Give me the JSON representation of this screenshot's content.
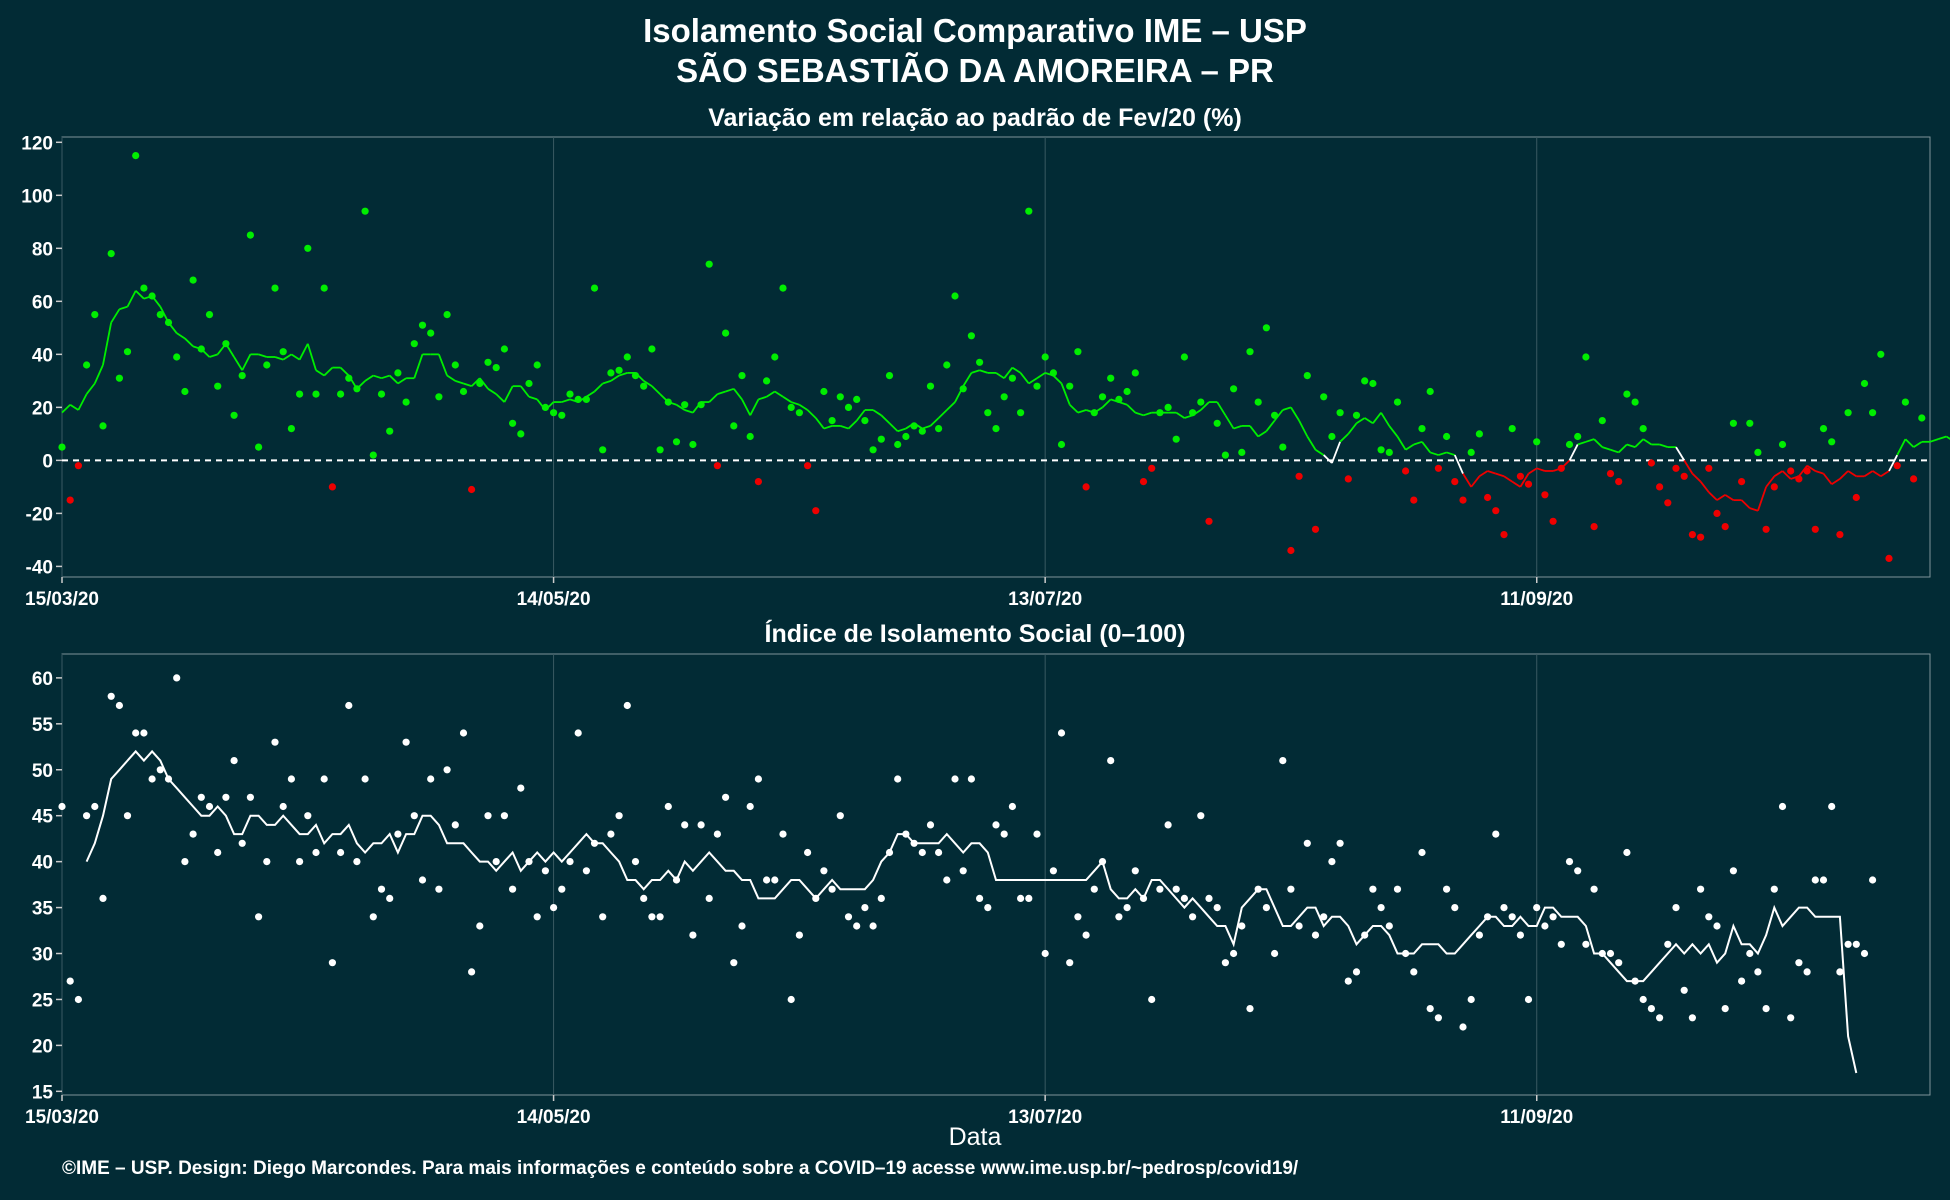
{
  "title": "Isolamento Social Comparativo IME – USP",
  "subtitle": "SÃO SEBASTIÃO DA AMOREIRA – PR",
  "footer": "©IME – USP. Design: Diego Marcondes. Para mais informações e conteúdo sobre a COVID–19 acesse www.ime.usp.br/~pedrosp/covid19/",
  "colors": {
    "background": "#022b35",
    "positive": "#00ee00",
    "negative": "#ee0000",
    "index": "#ffffff",
    "grid": "#3a5a62"
  },
  "chart_data": [
    {
      "type": "scatter",
      "title": "Variação em relação ao padrão de Fev/20 (%)",
      "xlabel": "",
      "ylabel": "",
      "x_start": "15/03/20",
      "x_end": "29/10/20",
      "x_ticks": [
        "15/03/20",
        "14/05/20",
        "13/07/20",
        "11/09/20"
      ],
      "y_ticks": [
        -40,
        -20,
        0,
        20,
        40,
        60,
        80,
        100,
        120
      ],
      "ylim": [
        -44,
        122
      ],
      "reference_line": 0,
      "grid": true,
      "series": [
        {
          "kind": "points",
          "values": [
            5,
            -15,
            -2,
            36,
            55,
            13,
            78,
            31,
            41,
            115,
            65,
            62,
            55,
            52,
            39,
            26,
            68,
            42,
            55,
            28,
            44,
            17,
            32,
            85,
            5,
            36,
            65,
            41,
            12,
            25,
            80,
            25,
            65,
            -10,
            25,
            31,
            27,
            94,
            2,
            25,
            11,
            33,
            22,
            44,
            51,
            48,
            24,
            55,
            36,
            26,
            -11,
            29,
            37,
            35,
            42,
            14,
            10,
            29,
            36,
            20,
            18,
            17,
            25,
            23,
            23,
            65,
            4,
            33,
            34,
            39,
            32,
            28,
            42,
            4,
            22,
            7,
            21,
            6,
            21,
            74,
            -2,
            48,
            13,
            32,
            9,
            -8,
            30,
            39,
            65,
            20,
            18,
            -2,
            -19,
            26,
            15,
            24,
            20,
            23,
            15,
            4,
            8,
            32,
            6,
            9,
            13,
            11,
            28,
            12,
            36,
            62,
            27,
            47,
            37,
            18,
            12,
            24,
            31,
            18,
            94,
            28,
            39,
            33,
            6,
            28,
            41,
            -10,
            18,
            24,
            31,
            23,
            26,
            33,
            -8,
            -3,
            18,
            20,
            8,
            39,
            18,
            22,
            -23,
            14,
            2,
            27,
            3,
            41,
            22,
            50,
            17,
            5,
            -34,
            -6,
            32,
            -26,
            24,
            9,
            18,
            -7,
            17,
            30,
            29,
            4,
            3,
            22,
            -4,
            -15,
            12,
            26,
            -3,
            9,
            -8,
            -15,
            3,
            10,
            -14,
            -19,
            -28,
            12,
            -6,
            -9,
            7,
            -13,
            -23,
            -3,
            6,
            9,
            39,
            -25,
            15,
            -5,
            -8,
            25,
            22,
            12,
            -1,
            -10,
            -16,
            -3,
            -6,
            -28,
            -29,
            -3,
            -20,
            -25,
            14,
            -8,
            14,
            3,
            -26,
            -10,
            6,
            -4,
            -7,
            -4,
            -26,
            12,
            7,
            -28,
            18,
            -14,
            29,
            18,
            40,
            -37,
            -2,
            22,
            -7,
            16
          ]
        },
        {
          "kind": "moving_average",
          "values": [
            18,
            21,
            19,
            25,
            29,
            36,
            52,
            57,
            58,
            64,
            61,
            62,
            58,
            52,
            48,
            46,
            43,
            42,
            39,
            40,
            44,
            39,
            34,
            40,
            40,
            39,
            39,
            38,
            40,
            38,
            44,
            34,
            32,
            35,
            35,
            32,
            27,
            30,
            32,
            31,
            32,
            29,
            31,
            31,
            40,
            40,
            40,
            32,
            30,
            29,
            28,
            31,
            27,
            25,
            22,
            28,
            28,
            24,
            23,
            19,
            22,
            22,
            23,
            22,
            24,
            26,
            29,
            30,
            32,
            33,
            33,
            30,
            28,
            25,
            22,
            21,
            19,
            18,
            22,
            22,
            25,
            26,
            27,
            23,
            17,
            23,
            24,
            26,
            24,
            22,
            21,
            19,
            16,
            12,
            13,
            13,
            12,
            15,
            19,
            19,
            17,
            14,
            11,
            12,
            14,
            12,
            13,
            16,
            19,
            22,
            28,
            33,
            34,
            33,
            33,
            31,
            35,
            33,
            29,
            31,
            33,
            32,
            29,
            21,
            18,
            19,
            18,
            20,
            23,
            22,
            21,
            18,
            17,
            18,
            18,
            18,
            18,
            16,
            17,
            19,
            22,
            22,
            17,
            12,
            13,
            13,
            9,
            11,
            15,
            19,
            20,
            15,
            9,
            4,
            2,
            -1,
            7,
            10,
            14,
            16,
            14,
            18,
            13,
            9,
            4,
            6,
            7,
            3,
            2,
            3,
            2,
            -5,
            -10,
            -6,
            -4,
            -5,
            -6,
            -8,
            -10,
            -5,
            -3,
            -4,
            -4,
            -3,
            0,
            6,
            7,
            8,
            5,
            4,
            3,
            6,
            5,
            8,
            6,
            6,
            5,
            5,
            0,
            -5,
            -8,
            -12,
            -15,
            -13,
            -15,
            -15,
            -18,
            -19,
            -10,
            -6,
            -4,
            -7,
            -6,
            -2,
            -4,
            -5,
            -9,
            -7,
            -4,
            -6,
            -6,
            -4,
            -6,
            -4,
            2,
            8,
            5,
            7,
            7,
            8,
            9,
            7
          ]
        }
      ]
    },
    {
      "type": "scatter",
      "title": "Índice de Isolamento Social (0–100)",
      "xlabel": "Data",
      "ylabel": "",
      "x_start": "15/03/20",
      "x_end": "29/10/20",
      "x_ticks": [
        "15/03/20",
        "14/05/20",
        "13/07/20",
        "11/09/20"
      ],
      "y_ticks": [
        15,
        20,
        25,
        30,
        35,
        40,
        45,
        50,
        55,
        60
      ],
      "ylim": [
        14.6,
        62.6
      ],
      "grid": true,
      "series": [
        {
          "kind": "points",
          "values": [
            46,
            27,
            25,
            45,
            46,
            36,
            58,
            57,
            45,
            54,
            54,
            49,
            50,
            49,
            60,
            40,
            43,
            47,
            46,
            41,
            47,
            51,
            42,
            47,
            34,
            40,
            53,
            46,
            49,
            40,
            45,
            41,
            49,
            29,
            41,
            57,
            40,
            49,
            34,
            37,
            36,
            43,
            53,
            45,
            38,
            49,
            37,
            50,
            44,
            54,
            28,
            33,
            45,
            40,
            45,
            37,
            48,
            40,
            34,
            39,
            35,
            37,
            40,
            54,
            39,
            42,
            34,
            43,
            45,
            57,
            40,
            36,
            34,
            34,
            46,
            38,
            44,
            32,
            44,
            36,
            43,
            47,
            29,
            33,
            46,
            49,
            38,
            38,
            43,
            25,
            32,
            41,
            36,
            39,
            37,
            45,
            34,
            33,
            35,
            33,
            36,
            41,
            49,
            43,
            42,
            41,
            44,
            41,
            38,
            49,
            39,
            49,
            36,
            35,
            44,
            43,
            46,
            36,
            36,
            43,
            30,
            39,
            54,
            29,
            34,
            32,
            37,
            40,
            51,
            34,
            35,
            39,
            36,
            25,
            37,
            44,
            37,
            36,
            34,
            45,
            36,
            35,
            29,
            30,
            33,
            24,
            37,
            35,
            30,
            51,
            37,
            33,
            42,
            32,
            34,
            40,
            42,
            27,
            28,
            32,
            37,
            35,
            33,
            37,
            30,
            28,
            41,
            24,
            23,
            37,
            35,
            22,
            25,
            32,
            34,
            43,
            35,
            34,
            32,
            25,
            35,
            33,
            34,
            31,
            40,
            39,
            31,
            37,
            30,
            30,
            29,
            41,
            27,
            25,
            24,
            23,
            31,
            35,
            26,
            23,
            37,
            34,
            33,
            24,
            39,
            27,
            30,
            28,
            24,
            37,
            46,
            23,
            29,
            28,
            38,
            38,
            46,
            28,
            31,
            31,
            30,
            38
          ]
        },
        {
          "kind": "moving_average",
          "values": [
            40,
            42,
            45,
            49,
            50,
            51,
            52,
            51,
            52,
            51,
            49,
            48,
            47,
            46,
            45,
            45,
            46,
            45,
            43,
            43,
            45,
            45,
            44,
            44,
            45,
            44,
            43,
            43,
            44,
            42,
            43,
            43,
            44,
            42,
            41,
            42,
            42,
            43,
            41,
            43,
            43,
            45,
            45,
            44,
            42,
            42,
            42,
            41,
            40,
            40,
            39,
            40,
            41,
            39,
            40,
            41,
            40,
            41,
            40,
            41,
            42,
            43,
            42,
            42,
            41,
            40,
            38,
            38,
            37,
            38,
            38,
            39,
            38,
            40,
            39,
            40,
            41,
            40,
            39,
            39,
            38,
            38,
            36,
            36,
            36,
            37,
            38,
            38,
            37,
            36,
            37,
            38,
            37,
            37,
            37,
            37,
            38,
            40,
            41,
            43,
            43,
            42,
            42,
            42,
            42,
            43,
            42,
            41,
            42,
            42,
            41,
            38,
            38,
            38,
            38,
            38,
            38,
            38,
            38,
            38,
            38,
            38,
            38,
            39,
            40,
            37,
            36,
            36,
            37,
            36,
            38,
            38,
            37,
            36,
            35,
            36,
            35,
            34,
            33,
            33,
            31,
            35,
            36,
            37,
            37,
            35,
            33,
            33,
            34,
            35,
            35,
            33,
            34,
            34,
            33,
            31,
            32,
            33,
            33,
            32,
            30,
            30,
            30,
            31,
            31,
            31,
            30,
            30,
            31,
            32,
            33,
            34,
            34,
            33,
            33,
            34,
            33,
            33,
            35,
            35,
            34,
            34,
            34,
            33,
            30,
            30,
            29,
            28,
            27,
            27,
            27,
            28,
            29,
            30,
            31,
            30,
            31,
            30,
            31,
            29,
            30,
            33,
            31,
            31,
            30,
            32,
            35,
            33,
            34,
            35,
            35,
            34,
            34,
            34,
            34,
            21,
            17
          ]
        }
      ]
    }
  ]
}
